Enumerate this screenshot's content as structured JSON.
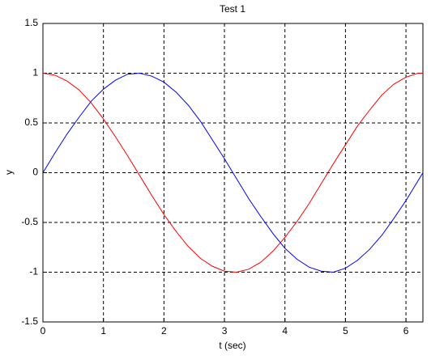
{
  "chart_data": {
    "type": "line",
    "title": "Test 1",
    "x_label": "t (sec)",
    "y_label": "y",
    "x": [
      0,
      0.2,
      0.4,
      0.6,
      0.8,
      1.0,
      1.2,
      1.4,
      1.6,
      1.8,
      2.0,
      2.2,
      2.4,
      2.6,
      2.8,
      3.0,
      3.2,
      3.4,
      3.6,
      3.8,
      4.0,
      4.2,
      4.4,
      4.6,
      4.8,
      5.0,
      5.2,
      5.4,
      5.6,
      5.8,
      6.0,
      6.2,
      6.28
    ],
    "series": [
      {
        "color": "#0000ff",
        "values": [
          0,
          0.2,
          0.39,
          0.56,
          0.72,
          0.84,
          0.93,
          0.99,
          1.0,
          0.97,
          0.91,
          0.81,
          0.68,
          0.52,
          0.33,
          0.14,
          -0.06,
          -0.26,
          -0.44,
          -0.61,
          -0.76,
          -0.87,
          -0.95,
          -0.99,
          -1.0,
          -0.96,
          -0.88,
          -0.77,
          -0.63,
          -0.46,
          -0.28,
          -0.08,
          0
        ]
      },
      {
        "color": "#ff0000",
        "values": [
          1,
          0.98,
          0.92,
          0.83,
          0.7,
          0.54,
          0.36,
          0.17,
          -0.03,
          -0.23,
          -0.42,
          -0.59,
          -0.74,
          -0.86,
          -0.94,
          -0.99,
          -1.0,
          -0.97,
          -0.9,
          -0.79,
          -0.65,
          -0.49,
          -0.31,
          -0.11,
          0.09,
          0.28,
          0.47,
          0.63,
          0.78,
          0.89,
          0.96,
          1.0,
          1
        ]
      }
    ],
    "xlim": [
      0,
      6.28
    ],
    "xticks": [
      0,
      1,
      2,
      3,
      4,
      5,
      6
    ],
    "ylim": [
      -1.5,
      1.5
    ],
    "yticks": [
      -1.5,
      -1,
      -0.5,
      0,
      0.5,
      1,
      1.5
    ],
    "grid": true
  }
}
